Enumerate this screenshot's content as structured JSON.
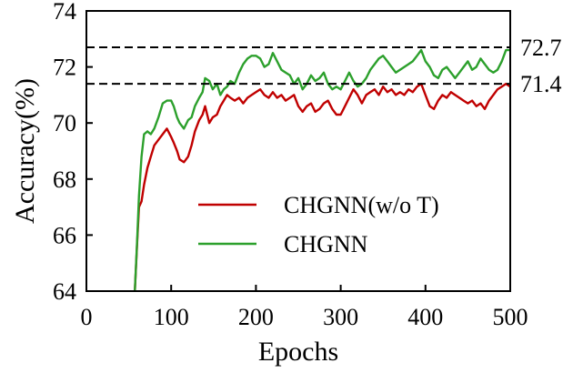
{
  "chart_data": {
    "type": "line",
    "xlabel": "Epochs",
    "ylabel": "Accuracy(%)",
    "xlim": [
      0,
      500
    ],
    "ylim": [
      64,
      74
    ],
    "xticks": [
      "0",
      "100",
      "200",
      "300",
      "400",
      "500"
    ],
    "yticks": [
      "64",
      "66",
      "68",
      "70",
      "72",
      "74"
    ],
    "grid": false,
    "legend_position": "lower-right",
    "reference_lines": [
      {
        "value": 72.7,
        "label": "72.7"
      },
      {
        "value": 71.4,
        "label": "71.4"
      }
    ],
    "series": [
      {
        "name": "CHGNN(w/o T)",
        "color": "#c00000",
        "x": [
          57,
          60,
          62,
          65,
          68,
          72,
          76,
          80,
          85,
          90,
          95,
          100,
          103,
          107,
          110,
          115,
          120,
          124,
          128,
          133,
          137,
          140,
          145,
          149,
          154,
          158,
          162,
          166,
          170,
          175,
          180,
          185,
          190,
          195,
          200,
          205,
          210,
          215,
          220,
          225,
          230,
          235,
          240,
          245,
          250,
          255,
          260,
          265,
          270,
          275,
          280,
          285,
          290,
          295,
          300,
          305,
          310,
          315,
          320,
          325,
          330,
          335,
          340,
          345,
          350,
          355,
          360,
          365,
          370,
          375,
          380,
          385,
          390,
          395,
          400,
          405,
          410,
          415,
          420,
          425,
          430,
          435,
          440,
          445,
          450,
          455,
          460,
          465,
          470,
          475,
          480,
          485,
          490,
          495,
          500
        ],
        "values": [
          63.9,
          65.8,
          67.0,
          67.2,
          67.8,
          68.4,
          68.8,
          69.2,
          69.4,
          69.6,
          69.8,
          69.5,
          69.3,
          69.0,
          68.7,
          68.6,
          68.8,
          69.2,
          69.7,
          70.1,
          70.3,
          70.6,
          70.0,
          70.2,
          70.3,
          70.6,
          70.8,
          71.0,
          70.9,
          70.8,
          70.9,
          70.7,
          70.9,
          71.0,
          71.1,
          71.2,
          71.0,
          70.9,
          71.1,
          70.9,
          71.0,
          70.8,
          70.9,
          71.0,
          70.6,
          70.4,
          70.6,
          70.7,
          70.4,
          70.5,
          70.7,
          70.8,
          70.5,
          70.3,
          70.3,
          70.6,
          70.9,
          71.2,
          71.0,
          70.7,
          71.0,
          71.1,
          71.2,
          71.0,
          71.3,
          71.1,
          71.2,
          71.0,
          71.1,
          71.0,
          71.2,
          71.1,
          71.3,
          71.4,
          71.0,
          70.6,
          70.5,
          70.8,
          71.0,
          70.9,
          71.1,
          71.0,
          70.9,
          70.8,
          70.7,
          70.8,
          70.6,
          70.7,
          70.5,
          70.8,
          71.0,
          71.2,
          71.3,
          71.4,
          71.3
        ]
      },
      {
        "name": "CHGNN",
        "color": "#2ca02c",
        "x": [
          57,
          60,
          62,
          65,
          68,
          72,
          76,
          80,
          85,
          90,
          95,
          100,
          103,
          107,
          110,
          115,
          120,
          124,
          128,
          133,
          137,
          140,
          145,
          149,
          154,
          158,
          162,
          166,
          170,
          175,
          180,
          185,
          190,
          195,
          200,
          205,
          210,
          215,
          220,
          225,
          230,
          235,
          240,
          245,
          250,
          255,
          260,
          265,
          270,
          275,
          280,
          285,
          290,
          295,
          300,
          305,
          310,
          315,
          320,
          325,
          330,
          335,
          340,
          345,
          350,
          355,
          360,
          365,
          370,
          375,
          380,
          385,
          390,
          395,
          400,
          405,
          410,
          415,
          420,
          425,
          430,
          435,
          440,
          445,
          450,
          455,
          460,
          465,
          470,
          475,
          480,
          485,
          490,
          495,
          500
        ],
        "values": [
          63.9,
          65.9,
          67.4,
          68.8,
          69.6,
          69.7,
          69.6,
          69.8,
          70.2,
          70.7,
          70.8,
          70.8,
          70.6,
          70.2,
          70.0,
          69.8,
          70.1,
          70.2,
          70.6,
          70.9,
          71.1,
          71.6,
          71.5,
          71.2,
          71.4,
          71.0,
          71.2,
          71.3,
          71.5,
          71.4,
          71.8,
          72.1,
          72.3,
          72.4,
          72.4,
          72.3,
          72.0,
          72.1,
          72.5,
          72.2,
          71.9,
          71.8,
          71.7,
          71.4,
          71.6,
          71.2,
          71.4,
          71.7,
          71.5,
          71.6,
          71.8,
          71.4,
          71.2,
          71.3,
          71.2,
          71.5,
          71.8,
          71.5,
          71.3,
          71.4,
          71.6,
          71.9,
          72.1,
          72.3,
          72.4,
          72.2,
          72.0,
          71.8,
          71.9,
          72.0,
          72.1,
          72.2,
          72.4,
          72.6,
          72.2,
          72.0,
          71.7,
          71.6,
          71.9,
          72.0,
          71.8,
          71.6,
          71.8,
          72.0,
          72.2,
          71.9,
          72.0,
          72.3,
          72.1,
          71.9,
          71.8,
          71.9,
          72.2,
          72.6,
          72.6
        ]
      }
    ]
  }
}
